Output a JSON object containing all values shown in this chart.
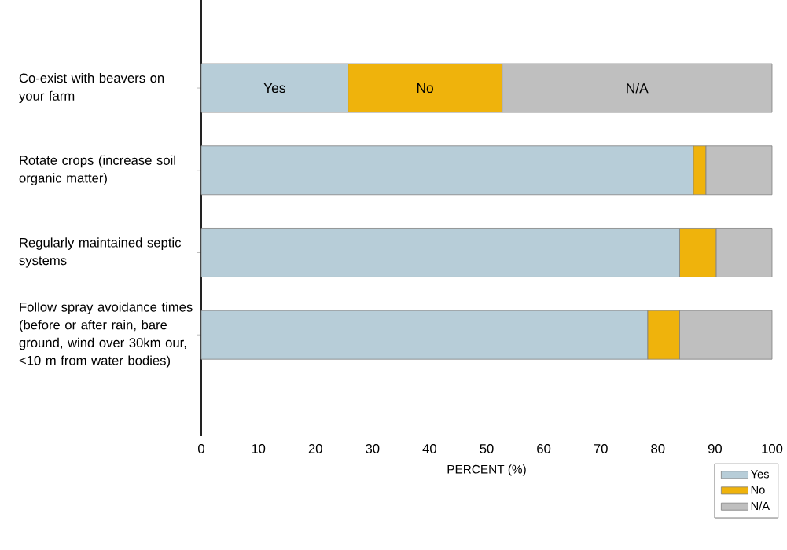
{
  "chart_data": {
    "type": "bar",
    "orientation": "horizontal",
    "stacked": true,
    "categories": [
      "Co-exist with beavers on your farm",
      "Rotate crops (increase soil organic matter)",
      "Regularly maintained septic systems",
      "Follow spray avoidance times (before or after rain, bare ground, wind over 30km our, <10 m from water bodies)"
    ],
    "series": [
      {
        "name": "Yes",
        "color": "#b7cdd8",
        "values": [
          25.7,
          86.2,
          83.8,
          78.2
        ],
        "value_labels": [
          "Yes",
          null,
          null,
          null
        ]
      },
      {
        "name": "No",
        "color": "#efb30c",
        "values": [
          27.0,
          2.2,
          6.4,
          5.6
        ],
        "value_labels": [
          "No",
          null,
          null,
          null
        ]
      },
      {
        "name": "N/A",
        "color": "#bfbfbf",
        "values": [
          47.3,
          11.6,
          9.8,
          16.2
        ],
        "value_labels": [
          "N/A",
          null,
          null,
          null
        ]
      }
    ],
    "xlabel": "PERCENT (%)",
    "xlim": [
      0,
      100
    ],
    "xticks": [
      0,
      10,
      20,
      30,
      40,
      50,
      60,
      70,
      80,
      90,
      100
    ],
    "grid": false,
    "legend": "bottom right"
  }
}
